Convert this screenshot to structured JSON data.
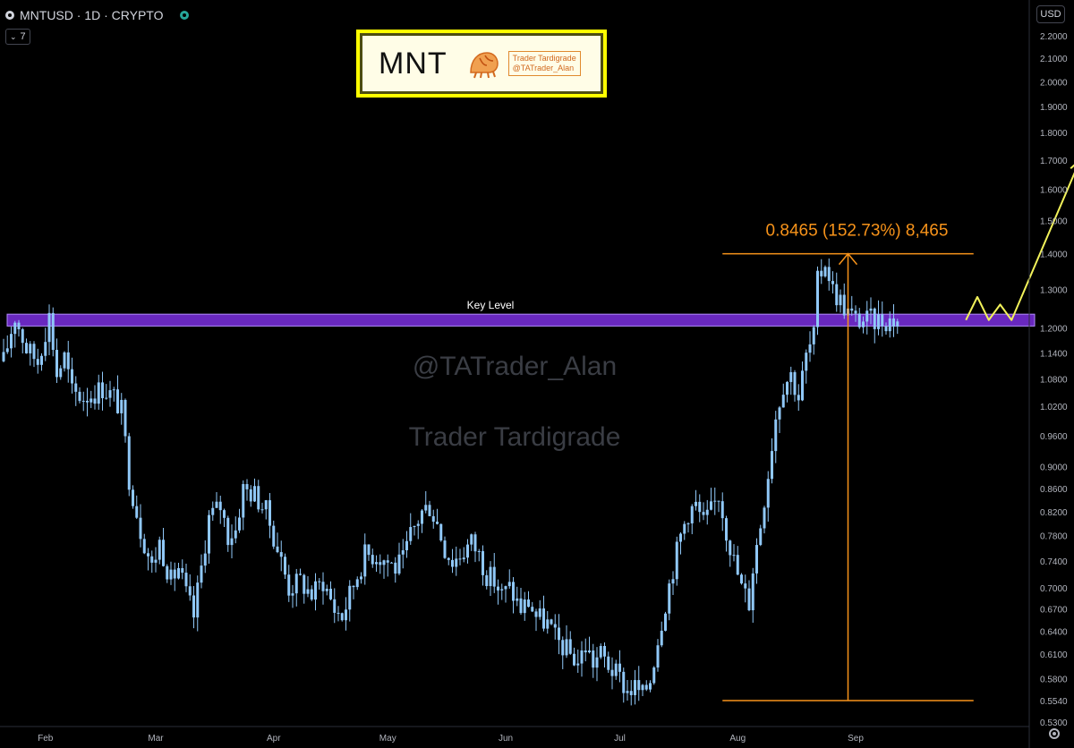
{
  "header": {
    "title": "MNTUSD · 1D · CRYPTO",
    "indicator_count": "7",
    "currency": "USD"
  },
  "logo": {
    "ticker": "MNT",
    "brand_line1": "Trader Tardigrade",
    "brand_line2": "@TATrader_Alan"
  },
  "watermark": {
    "handle": "@TATrader_Alan",
    "brand": "Trader Tardigrade"
  },
  "colors": {
    "background": "#000000",
    "candle": "#90c8f8",
    "key_level": "#7b2fe0",
    "measure": "#f7931a",
    "projection": "#f2f25a",
    "axis_text": "#b2b5be",
    "logo_border": "#ffff00"
  },
  "icons": [
    "symbol-icon",
    "status-dot-icon",
    "chevron-down-icon",
    "gear-icon"
  ],
  "chart_data": {
    "type": "candlestick",
    "symbol": "MNTUSD",
    "interval": "1D",
    "y_scale": "log",
    "ylim": [
      0.525,
      2.25
    ],
    "x_start_index": 0,
    "x_end_index": 235,
    "y_ticks": [
      "2.2000",
      "2.1000",
      "2.0000",
      "1.9000",
      "1.8000",
      "1.7000",
      "1.6000",
      "1.5000",
      "1.4000",
      "1.3000",
      "1.2000",
      "1.1400",
      "1.0800",
      "1.0200",
      "0.9600",
      "0.9000",
      "0.8600",
      "0.8200",
      "0.7800",
      "0.7400",
      "0.7000",
      "0.6700",
      "0.6400",
      "0.6100",
      "0.5800",
      "0.5540",
      "0.5300"
    ],
    "x_ticks": [
      {
        "label": "Feb",
        "index": 11
      },
      {
        "label": "Mar",
        "index": 40
      },
      {
        "label": "Apr",
        "index": 71
      },
      {
        "label": "May",
        "index": 101
      },
      {
        "label": "Jun",
        "index": 132
      },
      {
        "label": "Jul",
        "index": 162
      },
      {
        "label": "Aug",
        "index": 193
      },
      {
        "label": "Sep",
        "index": 224
      }
    ],
    "price_path": [
      [
        0,
        1.12
      ],
      [
        3,
        1.23
      ],
      [
        6,
        1.15
      ],
      [
        9,
        1.12
      ],
      [
        12,
        1.23
      ],
      [
        14,
        1.09
      ],
      [
        16,
        1.13
      ],
      [
        18,
        1.05
      ],
      [
        21,
        1.04
      ],
      [
        24,
        1.05
      ],
      [
        26,
        1.06
      ],
      [
        29,
        1.04
      ],
      [
        31,
        1.01
      ],
      [
        33,
        0.88
      ],
      [
        36,
        0.79
      ],
      [
        39,
        0.73
      ],
      [
        41,
        0.77
      ],
      [
        44,
        0.71
      ],
      [
        46,
        0.73
      ],
      [
        48,
        0.69
      ],
      [
        50,
        0.66
      ],
      [
        52,
        0.73
      ],
      [
        54,
        0.81
      ],
      [
        57,
        0.83
      ],
      [
        59,
        0.78
      ],
      [
        61,
        0.79
      ],
      [
        63,
        0.86
      ],
      [
        66,
        0.85
      ],
      [
        69,
        0.82
      ],
      [
        71,
        0.78
      ],
      [
        73,
        0.74
      ],
      [
        75,
        0.7
      ],
      [
        78,
        0.71
      ],
      [
        81,
        0.69
      ],
      [
        84,
        0.71
      ],
      [
        87,
        0.67
      ],
      [
        89,
        0.66
      ],
      [
        91,
        0.69
      ],
      [
        93,
        0.72
      ],
      [
        95,
        0.75
      ],
      [
        98,
        0.75
      ],
      [
        101,
        0.74
      ],
      [
        103,
        0.73
      ],
      [
        105,
        0.74
      ],
      [
        107,
        0.78
      ],
      [
        110,
        0.82
      ],
      [
        112,
        0.83
      ],
      [
        114,
        0.8
      ],
      [
        116,
        0.76
      ],
      [
        118,
        0.74
      ],
      [
        120,
        0.75
      ],
      [
        123,
        0.77
      ],
      [
        125,
        0.75
      ],
      [
        127,
        0.72
      ],
      [
        129,
        0.71
      ],
      [
        131,
        0.69
      ],
      [
        133,
        0.7
      ],
      [
        136,
        0.67
      ],
      [
        138,
        0.68
      ],
      [
        140,
        0.66
      ],
      [
        143,
        0.65
      ],
      [
        145,
        0.63
      ],
      [
        147,
        0.62
      ],
      [
        149,
        0.61
      ],
      [
        151,
        0.6
      ],
      [
        153,
        0.62
      ],
      [
        155,
        0.6
      ],
      [
        157,
        0.61
      ],
      [
        160,
        0.59
      ],
      [
        162,
        0.58
      ],
      [
        164,
        0.565
      ],
      [
        166,
        0.57
      ],
      [
        168,
        0.56
      ],
      [
        170,
        0.58
      ],
      [
        172,
        0.63
      ],
      [
        174,
        0.68
      ],
      [
        176,
        0.73
      ],
      [
        178,
        0.78
      ],
      [
        180,
        0.82
      ],
      [
        182,
        0.83
      ],
      [
        184,
        0.8
      ],
      [
        186,
        0.82
      ],
      [
        188,
        0.85
      ],
      [
        190,
        0.79
      ],
      [
        192,
        0.74
      ],
      [
        194,
        0.7
      ],
      [
        196,
        0.68
      ],
      [
        197,
        0.73
      ],
      [
        199,
        0.8
      ],
      [
        201,
        0.89
      ],
      [
        203,
        1.0
      ],
      [
        205,
        1.07
      ],
      [
        207,
        1.09
      ],
      [
        209,
        1.04
      ],
      [
        211,
        1.13
      ],
      [
        213,
        1.18
      ],
      [
        214,
        1.32
      ],
      [
        216,
        1.38
      ],
      [
        218,
        1.3
      ],
      [
        220,
        1.27
      ],
      [
        222,
        1.24
      ],
      [
        224,
        1.22
      ]
    ],
    "key_level": {
      "label": "Key Level",
      "y_low": 1.205,
      "y_high": 1.235,
      "x_start_index": 0,
      "x_end_index": 272
    },
    "measurement": {
      "label": "0.8465 (152.73%) 8,465",
      "low": 0.554,
      "high": 1.4,
      "x_start_index": 189,
      "x_end_index": 255,
      "arrow_index": 222
    },
    "projection_path": [
      [
        253,
        1.22
      ],
      [
        256,
        1.28
      ],
      [
        259,
        1.22
      ],
      [
        262,
        1.26
      ],
      [
        265,
        1.22
      ],
      [
        283,
        1.7
      ]
    ],
    "watermark_text": [
      "@TATrader_Alan",
      "Trader Tardigrade"
    ]
  }
}
